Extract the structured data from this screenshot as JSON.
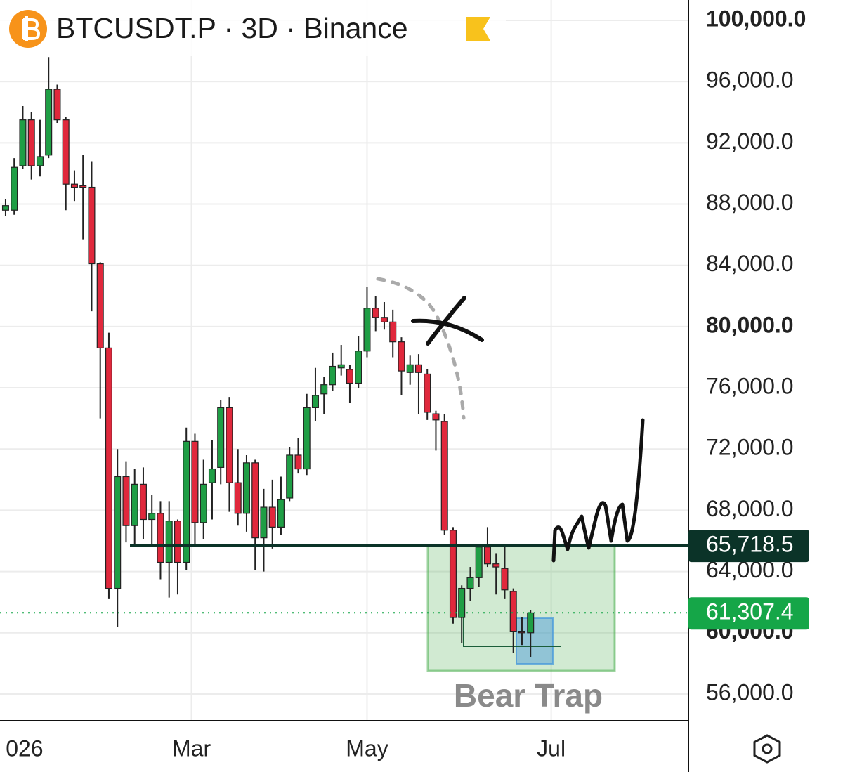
{
  "chart_data": {
    "type": "candlestick",
    "title": "BTCUSDT.P · 3D · Binance",
    "up_color": "#1f9e45",
    "down_color": "#e0283c",
    "open": [
      87600,
      87600,
      90500,
      93500,
      90500,
      91200,
      95500,
      93500,
      89300,
      89200,
      89100,
      84100,
      78600,
      62900,
      70200,
      67000,
      69700,
      67400,
      67800,
      64600,
      67300,
      64600,
      72500,
      67200,
      69800,
      70800,
      74700,
      69800,
      67800,
      71100,
      66200,
      68200,
      66900,
      68800,
      71600,
      70700,
      74700,
      75600,
      76200,
      77300,
      77200,
      76300,
      78400,
      81200,
      80600,
      80300,
      79000,
      77000,
      77500,
      76900,
      74300,
      73800,
      66700,
      61000,
      62900,
      63600,
      65600,
      64500,
      64200,
      62700,
      60100,
      60000
    ],
    "high": [
      88300,
      91000,
      94400,
      94000,
      93500,
      97600,
      95800,
      93700,
      90200,
      91200,
      90800,
      84200,
      79600,
      72000,
      71200,
      70700,
      70800,
      69000,
      68600,
      68600,
      67400,
      73400,
      73000,
      71300,
      72600,
      75200,
      75400,
      72000,
      71600,
      71300,
      69400,
      70000,
      70200,
      72100,
      72700,
      75600,
      77300,
      76700,
      78300,
      78800,
      77500,
      79400,
      82600,
      82000,
      81600,
      81100,
      79300,
      78100,
      78200,
      77200,
      74500,
      74300,
      66900,
      63100,
      64300,
      65700,
      66900,
      65200,
      65800,
      62900,
      61000,
      61500
    ],
    "low": [
      87200,
      87300,
      90300,
      89600,
      89800,
      91000,
      93300,
      87600,
      88200,
      85700,
      81000,
      74000,
      62200,
      60400,
      65900,
      65600,
      66100,
      65600,
      63500,
      62300,
      62500,
      64100,
      65600,
      66100,
      67400,
      69700,
      67900,
      67000,
      66600,
      64100,
      64000,
      65500,
      66400,
      68600,
      70400,
      70300,
      73800,
      74300,
      75800,
      76800,
      75000,
      76000,
      78000,
      79700,
      79800,
      78000,
      75500,
      76200,
      74300,
      73900,
      71900,
      66400,
      60600,
      59300,
      62100,
      63000,
      64300,
      62500,
      62200,
      58700,
      59200,
      58400
    ],
    "close": [
      87900,
      90400,
      93500,
      90500,
      91100,
      95500,
      93500,
      89300,
      89100,
      89100,
      84100,
      78600,
      62900,
      70200,
      67000,
      69700,
      67400,
      67800,
      64600,
      67300,
      64600,
      72500,
      67200,
      69700,
      70700,
      74700,
      69800,
      67800,
      71100,
      66200,
      68200,
      66900,
      68700,
      71600,
      70700,
      74700,
      75500,
      76200,
      77400,
      77500,
      76300,
      78400,
      81200,
      80600,
      80300,
      79000,
      77100,
      77500,
      77000,
      74400,
      73900,
      66700,
      61000,
      62900,
      63600,
      65600,
      64500,
      64300,
      62800,
      60100,
      60000,
      61300
    ],
    "xlim": [
      -0.65,
      79.35
    ],
    "xticks": [
      {
        "value": 2.2,
        "label": "026"
      },
      {
        "value": 21.6,
        "label": "Mar"
      },
      {
        "value": 42.0,
        "label": "May"
      },
      {
        "value": 63.4,
        "label": "Jul"
      }
    ],
    "ylim": [
      54300,
      101330
    ],
    "yticks": [
      {
        "value": 100000,
        "label": "100,000.0"
      },
      {
        "value": 96000,
        "label": "96,000.0"
      },
      {
        "value": 92000,
        "label": "92,000.0"
      },
      {
        "value": 88000,
        "label": "88,000.0"
      },
      {
        "value": 84000,
        "label": "84,000.0"
      },
      {
        "value": 80000,
        "label": "80,000.0"
      },
      {
        "value": 76000,
        "label": "76,000.0"
      },
      {
        "value": 72000,
        "label": "72,000.0"
      },
      {
        "value": 68000,
        "label": "68,000.0"
      },
      {
        "value": 64000,
        "label": "64,000.0"
      },
      {
        "value": 60000,
        "label": "60,000.0"
      },
      {
        "value": 56000,
        "label": "56,000.0"
      }
    ],
    "grid": true,
    "price_lines": [
      {
        "value": 65718.5,
        "label": "65,718.5",
        "color": "#0b3328",
        "style": "solid"
      },
      {
        "value": 61307.4,
        "label": "61,307.4",
        "color": "#15a648",
        "style": "dotted"
      }
    ],
    "annotations": [
      "Bear Trap"
    ]
  }
}
